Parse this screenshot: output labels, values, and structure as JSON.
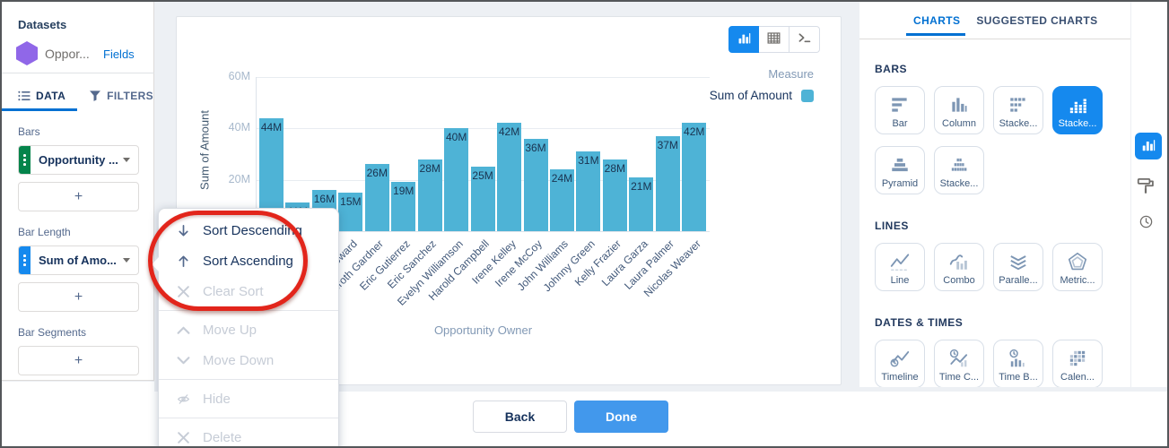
{
  "sidebar": {
    "datasets_label": "Datasets",
    "dataset_name": "Oppor...",
    "fields_link": "Fields",
    "tabs": [
      {
        "label": "DATA",
        "icon": "list",
        "active": true
      },
      {
        "label": "FILTERS",
        "icon": "funnel",
        "active": false
      }
    ],
    "sections": [
      {
        "label": "Bars",
        "field": "Opportunity ...",
        "handle_color": "#04844b"
      },
      {
        "label": "Bar Length",
        "field": "Sum of Amo...",
        "handle_color": "#1589ee"
      },
      {
        "label": "Bar Segments"
      }
    ],
    "add_button_label": "+"
  },
  "context_menu": {
    "items": [
      {
        "label": "Sort Descending",
        "icon": "arrow-down",
        "enabled": true
      },
      {
        "label": "Sort Ascending",
        "icon": "arrow-up",
        "enabled": true
      },
      {
        "label": "Clear Sort",
        "icon": "x",
        "enabled": false
      },
      {
        "divider": true
      },
      {
        "label": "Move Up",
        "icon": "chevron-up",
        "enabled": false
      },
      {
        "label": "Move Down",
        "icon": "chevron-down",
        "enabled": false
      },
      {
        "divider": true
      },
      {
        "label": "Hide",
        "icon": "eye-slash",
        "enabled": false
      },
      {
        "divider": true
      },
      {
        "label": "Delete",
        "icon": "x",
        "enabled": false
      }
    ]
  },
  "chart_toolbar": [
    {
      "name": "chart-view",
      "icon": "chart-column",
      "active": true
    },
    {
      "name": "table-view",
      "icon": "table",
      "active": false
    },
    {
      "name": "query-view",
      "icon": "query",
      "active": false
    }
  ],
  "chart_data": {
    "type": "bar",
    "orientation": "vertical",
    "xlabel": "Opportunity Owner",
    "ylabel": "Sum of Amount",
    "unit": "M",
    "categories": [
      "",
      "",
      "",
      "Dennis Howard",
      "Doroth Gardner",
      "Eric Gutierrez",
      "Eric Sanchez",
      "Evelyn Williamson",
      "Harold Campbell",
      "Irene Kelley",
      "Irene McCoy",
      "John Williams",
      "Johnny Green",
      "Kelly Frazier",
      "Laura Garza",
      "Laura Palmer",
      "Nicolas Weaver"
    ],
    "values": [
      44,
      11,
      16,
      15,
      26,
      19,
      28,
      40,
      25,
      42,
      36,
      24,
      31,
      28,
      21,
      37,
      42
    ],
    "value_labels": [
      "44M",
      "11M",
      "16M",
      "15M",
      "26M",
      "19M",
      "28M",
      "40M",
      "25M",
      "42M",
      "36M",
      "24M",
      "31M",
      "28M",
      "21M",
      "37M",
      "42M"
    ],
    "yticks": [
      {
        "value": 20,
        "label": "20M"
      },
      {
        "value": 40,
        "label": "40M"
      },
      {
        "value": 60,
        "label": "60M"
      }
    ],
    "ylim": [
      0,
      60
    ],
    "grid": true,
    "bar_color": "#4eb3d6",
    "legend": {
      "position": "top-right",
      "title": "Measure",
      "entries": [
        {
          "label": "Sum of Amount",
          "color": "#4eb3d6"
        }
      ]
    }
  },
  "right_panel": {
    "tabs": [
      {
        "label": "CHARTS",
        "active": true
      },
      {
        "label": "SUGGESTED CHARTS",
        "active": false
      }
    ],
    "sections": [
      {
        "heading": "BARS",
        "tiles": [
          {
            "label": "Bar",
            "icon": "bar"
          },
          {
            "label": "Column",
            "icon": "column"
          },
          {
            "label": "Stacke...",
            "icon": "stacked-bar"
          },
          {
            "label": "Stacke...",
            "icon": "stacked-column",
            "selected": true
          },
          {
            "label": "Pyramid",
            "icon": "pyramid"
          },
          {
            "label": "Stacke...",
            "icon": "stacked-pyramid"
          }
        ]
      },
      {
        "heading": "LINES",
        "tiles": [
          {
            "label": "Line",
            "icon": "line"
          },
          {
            "label": "Combo",
            "icon": "combo"
          },
          {
            "label": "Paralle...",
            "icon": "parallel"
          },
          {
            "label": "Metric...",
            "icon": "metrics"
          }
        ]
      },
      {
        "heading": "DATES & TIMES",
        "tiles": [
          {
            "label": "Timeline",
            "icon": "timeline"
          },
          {
            "label": "Time C...",
            "icon": "time-combo"
          },
          {
            "label": "Time B...",
            "icon": "time-bar"
          },
          {
            "label": "Calen...",
            "icon": "calendar"
          }
        ]
      }
    ],
    "rail": [
      {
        "icon": "chart-column",
        "active": true
      },
      {
        "icon": "paint-roller",
        "active": false
      },
      {
        "icon": "clock",
        "active": false
      }
    ]
  },
  "footer": {
    "back_label": "Back",
    "done_label": "Done"
  },
  "colors": {
    "accent": "#0070d2",
    "selected_tile": "#1589ee",
    "bar": "#4eb3d6",
    "done_button": "#4298ec",
    "annotation": "#e2251b"
  }
}
